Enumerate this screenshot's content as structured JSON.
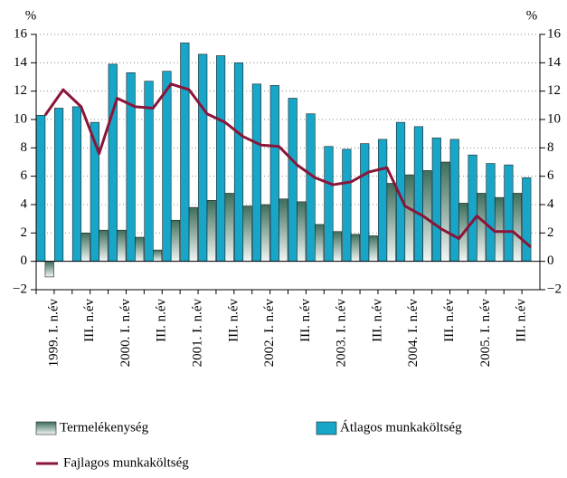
{
  "chart_data": {
    "type": "bar-line",
    "y_unit": "%",
    "y2_unit": "%",
    "categories": [
      "1999. I. n.év",
      null,
      "III. n.év",
      null,
      "2000. I. n.év",
      null,
      "III. n.év",
      null,
      "2001. I. n.év",
      null,
      "III. n.év",
      null,
      "2002. I. n.év",
      null,
      "III. n.év",
      null,
      "2003. I. n.év",
      null,
      "III. n.év",
      null,
      "2004. I. n.év",
      null,
      "III. n.év",
      null,
      "2005. I. n.év",
      null,
      "III. n.év",
      null
    ],
    "series": [
      {
        "name": "Átlagos munkaköltség",
        "kind": "bar",
        "color": "#17a6c8",
        "values": [
          10.3,
          10.8,
          10.9,
          9.8,
          13.9,
          13.3,
          12.7,
          13.4,
          15.4,
          14.6,
          14.5,
          14.0,
          12.5,
          12.4,
          11.5,
          10.4,
          8.1,
          7.9,
          8.3,
          8.6,
          9.8,
          9.5,
          8.7,
          8.6,
          7.5,
          6.9,
          6.8,
          5.9
        ]
      },
      {
        "name": "Termelékenység",
        "kind": "bar",
        "color": "#3d6e5c",
        "values": [
          -1.1,
          null,
          2.0,
          2.2,
          2.2,
          1.7,
          0.8,
          2.9,
          3.8,
          4.3,
          4.8,
          3.9,
          4.0,
          4.4,
          4.2,
          2.6,
          2.1,
          1.9,
          1.8,
          5.5,
          6.1,
          6.4,
          7.0,
          4.1,
          4.8,
          4.5,
          4.8,
          null
        ]
      },
      {
        "name": "Fajlagos munkaköltség",
        "kind": "line",
        "color": "#8a1538",
        "values": [
          10.3,
          12.1,
          10.9,
          7.6,
          11.5,
          10.9,
          10.8,
          12.5,
          12.1,
          10.4,
          9.8,
          8.8,
          8.2,
          8.1,
          6.8,
          5.9,
          5.4,
          5.6,
          6.3,
          6.6,
          3.9,
          3.2,
          2.3,
          1.6,
          3.2,
          2.1,
          2.1,
          1.0
        ]
      }
    ],
    "ylim": [
      -2,
      16
    ],
    "yticks": [
      {
        "value": -2,
        "label": "−2"
      },
      0,
      2,
      4,
      6,
      8,
      10,
      12,
      14,
      16
    ],
    "y2lim": [
      -2,
      16
    ],
    "y2ticks": [
      {
        "value": -2,
        "label": "−2"
      },
      0,
      2,
      4,
      6,
      8,
      10,
      12,
      14,
      16
    ],
    "grid": true
  }
}
